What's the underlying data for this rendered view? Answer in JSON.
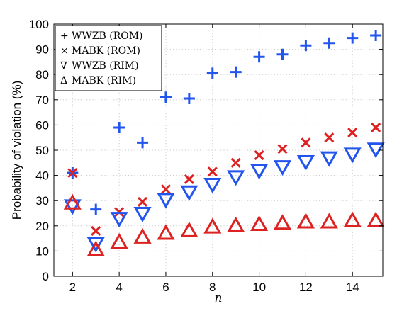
{
  "chart_data": {
    "type": "scatter",
    "title": "",
    "xlabel": "n",
    "ylabel": "Probability of violation (%)",
    "xlim": [
      1.2,
      15.3
    ],
    "ylim": [
      0,
      100
    ],
    "xticks": [
      2,
      4,
      6,
      8,
      10,
      12,
      14
    ],
    "yticks": [
      0,
      10,
      20,
      30,
      40,
      50,
      60,
      70,
      80,
      90,
      100
    ],
    "grid": true,
    "legend_position": "top-left",
    "series": [
      {
        "name": "WWZB (ROM)",
        "marker": "plus",
        "color": "#2255ee",
        "x": [
          2,
          3,
          4,
          5,
          6,
          7,
          8,
          9,
          10,
          11,
          12,
          13,
          14,
          15
        ],
        "y": [
          41,
          26.5,
          59,
          53,
          71,
          70.5,
          80.5,
          81,
          87,
          88,
          91.5,
          92.5,
          94.5,
          95.5
        ]
      },
      {
        "name": "MABK (ROM)",
        "marker": "cross",
        "color": "#dd2222",
        "x": [
          2,
          3,
          4,
          5,
          6,
          7,
          8,
          9,
          10,
          11,
          12,
          13,
          14,
          15
        ],
        "y": [
          41,
          18,
          25.5,
          29.5,
          34.5,
          38.5,
          41.5,
          45,
          48,
          50.5,
          53,
          55,
          57,
          59
        ]
      },
      {
        "name": "WWZB (RIM)",
        "marker": "triangle-down",
        "color": "#2255ee",
        "x": [
          2,
          3,
          4,
          5,
          6,
          7,
          8,
          9,
          10,
          11,
          12,
          13,
          14,
          15
        ],
        "y": [
          28,
          13,
          23,
          25,
          30.5,
          33.5,
          36.5,
          39.5,
          42,
          43.5,
          45.5,
          47,
          48.5,
          50.5
        ]
      },
      {
        "name": "MABK (RIM)",
        "marker": "triangle-up",
        "color": "#dd2222",
        "x": [
          2,
          3,
          4,
          5,
          6,
          7,
          8,
          9,
          10,
          11,
          12,
          13,
          14,
          15
        ],
        "y": [
          29,
          10.5,
          13.5,
          15.5,
          17,
          18,
          19.5,
          20,
          20.5,
          21,
          21.5,
          21.5,
          22,
          22
        ]
      }
    ],
    "legend": {
      "entries": [
        {
          "symbol": "+",
          "label": "WWZB (ROM)"
        },
        {
          "symbol": "×",
          "label": "MABK (ROM)"
        },
        {
          "symbol": "∇",
          "label": "WWZB (RIM)"
        },
        {
          "symbol": "Δ",
          "label": "MABK (RIM)"
        }
      ]
    }
  }
}
